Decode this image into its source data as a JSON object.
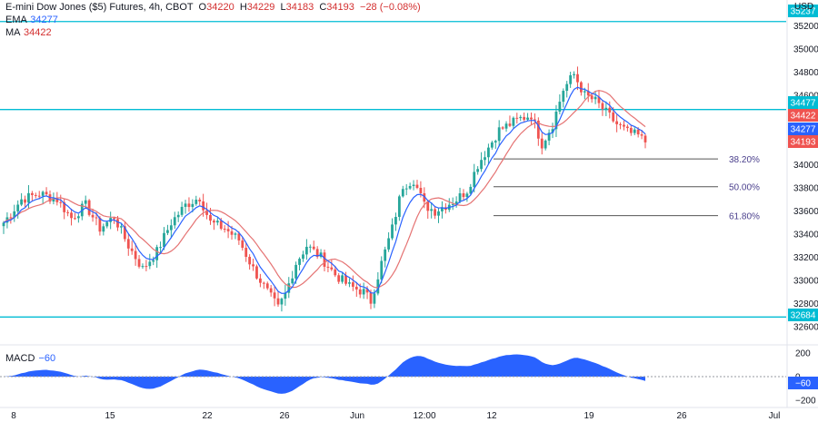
{
  "header": {
    "title": "E-mini Dow Jones ($5) Futures, 4h, CBOT",
    "open_label": "O",
    "open": "34220",
    "high_label": "H",
    "high": "34229",
    "low_label": "L",
    "low": "34183",
    "close_label": "C",
    "close": "34193",
    "change": "−28 (−0.08%)"
  },
  "indicators": {
    "ema": {
      "label": "EMA",
      "value": "34277"
    },
    "ma": {
      "label": "MA",
      "value": "34422"
    },
    "macd": {
      "label": "MACD",
      "value": "−60"
    }
  },
  "price_axis": {
    "currency": "USD",
    "ticks": [
      "35200",
      "35000",
      "34800",
      "34600",
      "34400",
      "34200",
      "34000",
      "33800",
      "33600",
      "33400",
      "33200",
      "33000",
      "32800",
      "32600"
    ]
  },
  "price_tags": {
    "resistance_top": "35237",
    "resistance_mid": "34477",
    "ma": "34422",
    "ema": "34277",
    "last": "34193",
    "support": "32684"
  },
  "macd_axis": {
    "ticks": [
      "200",
      "0",
      "−200"
    ],
    "tag": "−60"
  },
  "time_axis": [
    "8",
    "15",
    "22",
    "26",
    "Jun",
    "12:00",
    "12",
    "19",
    "26",
    "Jul"
  ],
  "fib_levels": [
    {
      "label": "38.20%",
      "price": 34050
    },
    {
      "label": "50.00%",
      "price": 33810
    },
    {
      "label": "61.80%",
      "price": 33560
    }
  ],
  "colors": {
    "up": "#26a69a",
    "down": "#ef5350",
    "ema": "#2962ff",
    "ma": "#e57373",
    "hline": "#00bcd4",
    "macd": "#2962ff",
    "fib": "#555555"
  },
  "chart_data": {
    "type": "candlestick",
    "title": "E-mini Dow Jones ($5) Futures, 4h, CBOT",
    "ylim": [
      32550,
      35300
    ],
    "horizontal_levels": [
      35237,
      34477,
      32684
    ],
    "anchors": [
      [
        0,
        33500
      ],
      [
        5,
        33700
      ],
      [
        10,
        33750
      ],
      [
        15,
        33700
      ],
      [
        19,
        33540
      ],
      [
        23,
        33650
      ],
      [
        27,
        33450
      ],
      [
        31,
        33550
      ],
      [
        35,
        33300
      ],
      [
        39,
        33100
      ],
      [
        43,
        33250
      ],
      [
        47,
        33500
      ],
      [
        51,
        33650
      ],
      [
        55,
        33720
      ],
      [
        58,
        33500
      ],
      [
        62,
        33450
      ],
      [
        66,
        33350
      ],
      [
        70,
        33100
      ],
      [
        74,
        32900
      ],
      [
        77,
        32760
      ],
      [
        79,
        32880
      ],
      [
        82,
        33150
      ],
      [
        85,
        33300
      ],
      [
        89,
        33200
      ],
      [
        93,
        33050
      ],
      [
        97,
        32950
      ],
      [
        101,
        32900
      ],
      [
        103,
        32820
      ],
      [
        106,
        33150
      ],
      [
        109,
        33450
      ],
      [
        112,
        33820
      ],
      [
        115,
        33870
      ],
      [
        118,
        33650
      ],
      [
        121,
        33600
      ],
      [
        124,
        33650
      ],
      [
        127,
        33700
      ],
      [
        130,
        33780
      ],
      [
        133,
        34000
      ],
      [
        136,
        34150
      ],
      [
        139,
        34300
      ],
      [
        142,
        34350
      ],
      [
        145,
        34400
      ],
      [
        148,
        34430
      ],
      [
        151,
        34180
      ],
      [
        154,
        34350
      ],
      [
        157,
        34650
      ],
      [
        160,
        34780
      ],
      [
        163,
        34600
      ],
      [
        166,
        34550
      ],
      [
        169,
        34450
      ],
      [
        172,
        34350
      ],
      [
        175,
        34280
      ],
      [
        178,
        34250
      ],
      [
        180,
        34193
      ]
    ]
  }
}
